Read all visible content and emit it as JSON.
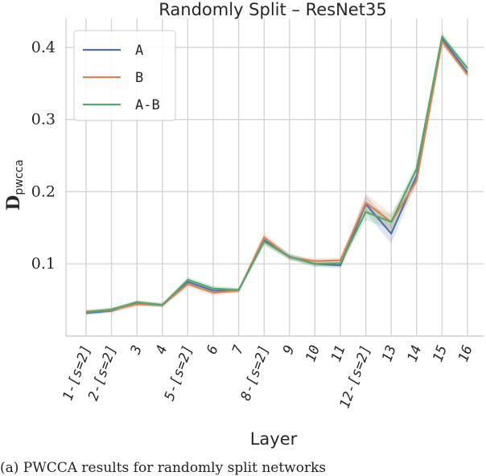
{
  "chart_data": {
    "type": "line",
    "title": "Randomly Split – ResNet35",
    "xlabel": "Layer",
    "ylabel_main": "D",
    "ylabel_sub": "pwcca",
    "categories": [
      "1-[s=2]",
      "2-[s=2]",
      "3",
      "4",
      "5-[s=2]",
      "6",
      "7",
      "8-[s=2]",
      "9",
      "10",
      "11",
      "12-[s=2]",
      "13",
      "14",
      "15",
      "16"
    ],
    "ylim": [
      0.0,
      0.44
    ],
    "yticks": [
      "0.1",
      "0.2",
      "0.3",
      "0.4"
    ],
    "grid": true,
    "legend_position": "top-left",
    "series": [
      {
        "name": "A",
        "color": "#4c72b0",
        "values": [
          0.032,
          0.035,
          0.046,
          0.043,
          0.075,
          0.063,
          0.063,
          0.133,
          0.11,
          0.1,
          0.098,
          0.183,
          0.142,
          0.222,
          0.412,
          0.365
        ],
        "spread": [
          0.003,
          0.003,
          0.003,
          0.003,
          0.004,
          0.004,
          0.003,
          0.006,
          0.004,
          0.004,
          0.004,
          0.012,
          0.014,
          0.008,
          0.006,
          0.004
        ]
      },
      {
        "name": "B",
        "color": "#dd8452",
        "values": [
          0.034,
          0.036,
          0.044,
          0.043,
          0.072,
          0.06,
          0.063,
          0.137,
          0.109,
          0.104,
          0.105,
          0.185,
          0.158,
          0.215,
          0.408,
          0.362
        ],
        "spread": [
          0.003,
          0.003,
          0.003,
          0.003,
          0.004,
          0.004,
          0.003,
          0.006,
          0.004,
          0.004,
          0.004,
          0.012,
          0.012,
          0.008,
          0.006,
          0.004
        ]
      },
      {
        "name": "A-B",
        "color": "#55a868",
        "values": [
          0.033,
          0.037,
          0.047,
          0.043,
          0.078,
          0.066,
          0.064,
          0.131,
          0.11,
          0.1,
          0.101,
          0.172,
          0.158,
          0.232,
          0.415,
          0.371
        ],
        "spread": [
          0.003,
          0.003,
          0.003,
          0.003,
          0.004,
          0.004,
          0.003,
          0.006,
          0.004,
          0.004,
          0.004,
          0.012,
          0.01,
          0.008,
          0.006,
          0.004
        ]
      }
    ]
  },
  "caption": "(a) PWCCA results for randomly split networks"
}
